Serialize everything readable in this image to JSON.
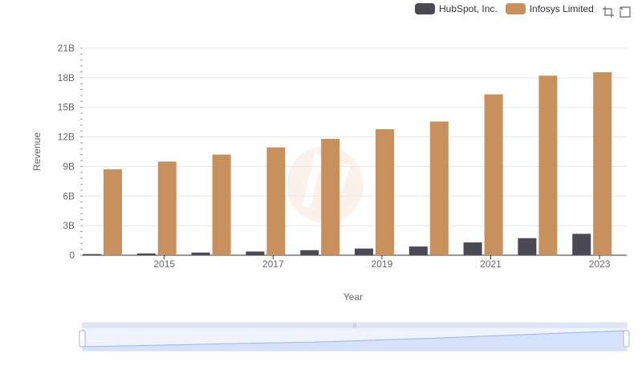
{
  "chart_data": {
    "type": "bar",
    "title": "",
    "xlabel": "Year",
    "ylabel": "Revenue",
    "categories": [
      "2014",
      "2015",
      "2016",
      "2017",
      "2018",
      "2019",
      "2020",
      "2021",
      "2022",
      "2023"
    ],
    "x_tick_labels": [
      "2015",
      "2017",
      "2019",
      "2021",
      "2023"
    ],
    "y_tick_labels": [
      "0",
      "3B",
      "6B",
      "9B",
      "12B",
      "15B",
      "18B",
      "21B"
    ],
    "ylim": [
      0,
      21
    ],
    "y_unit": "B",
    "series": [
      {
        "name": "HubSpot, Inc.",
        "color": "#4a4a55",
        "values": [
          0.116,
          0.182,
          0.272,
          0.376,
          0.513,
          0.675,
          0.883,
          1.3,
          1.73,
          2.17
        ]
      },
      {
        "name": "Infosys Limited",
        "color": "#c8905c",
        "values": [
          8.71,
          9.5,
          10.21,
          10.94,
          11.8,
          12.78,
          13.56,
          16.31,
          18.21,
          18.56
        ]
      }
    ],
    "legend_position": "top-right",
    "grid": true
  },
  "legend": {
    "items": [
      {
        "label": "HubSpot, Inc.",
        "color": "#4a4a55"
      },
      {
        "label": "Infosys Limited",
        "color": "#c8905c"
      }
    ]
  },
  "toolbox": {
    "icons": [
      "zoom-icon",
      "restore-icon"
    ]
  }
}
